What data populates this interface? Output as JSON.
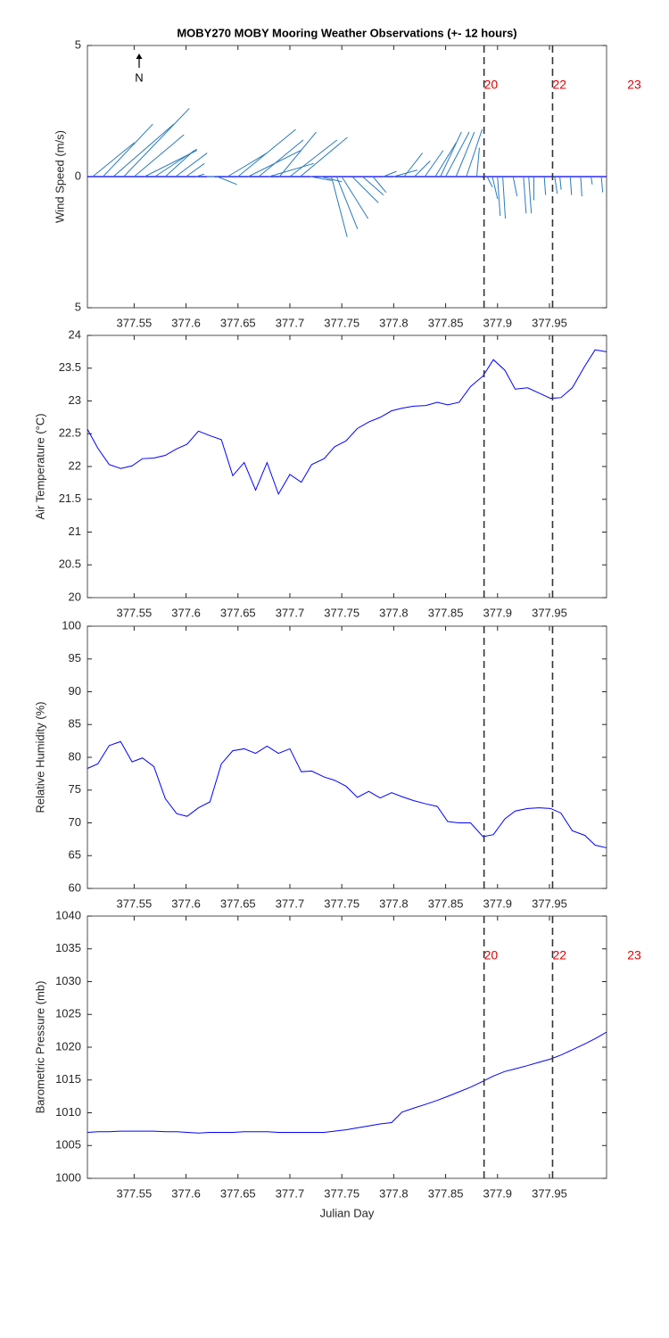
{
  "chart_data": [
    {
      "type": "stick",
      "title": "MOBY270 MOBY Mooring Weather Observations (+- 12 hours)",
      "ylabel": "Wind Speed (m/s)",
      "north_label": "N",
      "color": "#2b7bb9",
      "x": [
        377.51,
        377.52,
        377.53,
        377.54,
        377.55,
        377.56,
        377.57,
        377.58,
        377.59,
        377.6,
        377.61,
        377.62,
        377.63,
        377.64,
        377.65,
        377.66,
        377.67,
        377.68,
        377.69,
        377.7,
        377.71,
        377.72,
        377.73,
        377.74,
        377.745,
        377.75,
        377.76,
        377.77,
        377.78,
        377.79,
        377.8,
        377.81,
        377.82,
        377.83,
        377.84,
        377.845,
        377.85,
        377.86,
        377.87,
        377.88,
        377.885,
        377.89,
        377.895,
        377.9,
        377.905,
        377.915,
        377.925,
        377.93,
        377.935,
        377.945,
        377.955,
        377.96,
        377.97,
        377.98,
        377.99,
        378.0
      ],
      "u": [
        1.6,
        1.9,
        2.3,
        2.5,
        1.9,
        2.0,
        1.6,
        1.1,
        1.2,
        0.7,
        0.3,
        0.3,
        0.75,
        1.5,
        2.2,
        2.0,
        1.7,
        1.7,
        1.4,
        1.8,
        1.8,
        0.8,
        0.8,
        0.6,
        0.8,
        1.0,
        1.0,
        0.8,
        0.5,
        0.5,
        0.9,
        0.7,
        0.6,
        0.7,
        0.8,
        0.8,
        0.9,
        0.7,
        0.6,
        0.1,
        0.1,
        0.2,
        0.2,
        0.1,
        0.1,
        0.15,
        0.1,
        0.1,
        0.0,
        0.05,
        0.1,
        0.05,
        0.05,
        0.05,
        0.05,
        0.05
      ],
      "v": [
        1.3,
        2.0,
        2.0,
        2.6,
        1.6,
        1.0,
        1.05,
        1.0,
        0.9,
        0.5,
        0.1,
        0.0,
        -0.3,
        0.9,
        1.8,
        1.0,
        1.4,
        0.5,
        1.7,
        1.4,
        1.5,
        -0.15,
        -0.2,
        -2.3,
        -2.0,
        -1.6,
        -1.0,
        -0.7,
        -0.6,
        0.2,
        0.25,
        0.9,
        0.6,
        1.0,
        1.3,
        1.7,
        1.7,
        1.7,
        1.8,
        1.1,
        -0.1,
        -0.4,
        -0.85,
        -1.5,
        -1.6,
        -0.75,
        -1.4,
        -1.4,
        -0.9,
        -0.7,
        -0.65,
        -0.5,
        -0.7,
        -0.75,
        -0.3,
        -0.6
      ],
      "xlim": [
        377.505,
        378.005
      ],
      "xticks": [
        377.55,
        377.6,
        377.65,
        377.7,
        377.75,
        377.8,
        377.85,
        377.9,
        377.95
      ],
      "ylim": [
        -5,
        5
      ],
      "yticks": [
        {
          "value": -5,
          "label": "5"
        },
        0,
        5
      ],
      "vlines": [
        377.887,
        377.953
      ],
      "annotations": [
        {
          "text": "20",
          "x": 377.887
        },
        {
          "text": "22",
          "x": 377.953
        },
        {
          "text": "23",
          "x": 378.025
        }
      ]
    },
    {
      "type": "line",
      "ylabel": "Air Temperature (°C)",
      "color": "#0000ff",
      "x": [
        377.505,
        377.515,
        377.526,
        377.537,
        377.548,
        377.558,
        377.569,
        377.58,
        377.591,
        377.601,
        377.612,
        377.623,
        377.634,
        377.645,
        377.656,
        377.667,
        377.678,
        377.689,
        377.7,
        377.711,
        377.721,
        377.733,
        377.743,
        377.754,
        377.765,
        377.776,
        377.787,
        377.798,
        377.808,
        377.819,
        377.831,
        377.842,
        377.852,
        377.863,
        377.874,
        377.886,
        377.896,
        377.907,
        377.917,
        377.929,
        377.94,
        377.951,
        377.961,
        377.972,
        377.984,
        377.994,
        378.005
      ],
      "values": [
        22.57,
        22.28,
        22.03,
        21.97,
        22.01,
        22.12,
        22.13,
        22.17,
        22.27,
        22.34,
        22.54,
        22.47,
        22.41,
        21.86,
        22.06,
        21.64,
        22.06,
        21.58,
        21.88,
        21.76,
        22.03,
        22.12,
        22.3,
        22.39,
        22.58,
        22.68,
        22.75,
        22.85,
        22.89,
        22.92,
        22.93,
        22.98,
        22.94,
        22.98,
        23.22,
        23.38,
        23.63,
        23.47,
        23.18,
        23.2,
        23.12,
        23.04,
        23.05,
        23.2,
        23.53,
        23.78,
        23.75
      ],
      "xlim": [
        377.505,
        378.005
      ],
      "xticks": [
        377.55,
        377.6,
        377.65,
        377.7,
        377.75,
        377.8,
        377.85,
        377.9,
        377.95
      ],
      "ylim": [
        20,
        24
      ],
      "yticks": [
        20,
        20.5,
        21,
        21.5,
        22,
        22.5,
        23,
        23.5,
        24
      ],
      "vlines": [
        377.887,
        377.953
      ]
    },
    {
      "type": "line",
      "ylabel": "Relative Humidity (%)",
      "color": "#0000ff",
      "x": [
        377.505,
        377.515,
        377.526,
        377.537,
        377.548,
        377.558,
        377.569,
        377.58,
        377.591,
        377.601,
        377.612,
        377.623,
        377.634,
        377.645,
        377.656,
        377.667,
        377.678,
        377.689,
        377.7,
        377.711,
        377.721,
        377.733,
        377.743,
        377.754,
        377.765,
        377.776,
        377.787,
        377.798,
        377.808,
        377.819,
        377.831,
        377.842,
        377.852,
        377.863,
        377.874,
        377.886,
        377.896,
        377.907,
        377.917,
        377.929,
        377.94,
        377.951,
        377.961,
        377.972,
        377.984,
        377.994,
        378.005
      ],
      "values": [
        78.3,
        79.0,
        81.8,
        82.4,
        79.3,
        79.9,
        78.6,
        73.7,
        71.4,
        71.0,
        72.3,
        73.2,
        79.0,
        81.0,
        81.3,
        80.6,
        81.7,
        80.6,
        81.3,
        77.8,
        77.9,
        77.0,
        76.5,
        75.6,
        73.9,
        74.8,
        73.8,
        74.6,
        74.0,
        73.4,
        72.9,
        72.5,
        70.2,
        70.0,
        70.0,
        67.9,
        68.2,
        70.6,
        71.8,
        72.2,
        72.3,
        72.2,
        71.5,
        68.8,
        68.1,
        66.6,
        66.2
      ],
      "xlim": [
        377.505,
        378.005
      ],
      "xticks": [
        377.55,
        377.6,
        377.65,
        377.7,
        377.75,
        377.8,
        377.85,
        377.9,
        377.95
      ],
      "ylim": [
        60,
        100
      ],
      "yticks": [
        60,
        65,
        70,
        75,
        80,
        85,
        90,
        95,
        100
      ],
      "vlines": [
        377.887,
        377.953
      ]
    },
    {
      "type": "line",
      "ylabel": "Barometric Pressure (mb)",
      "xlabel": "Julian Day",
      "color": "#0000ff",
      "x": [
        377.505,
        377.515,
        377.526,
        377.537,
        377.548,
        377.558,
        377.569,
        377.58,
        377.591,
        377.601,
        377.612,
        377.623,
        377.634,
        377.645,
        377.656,
        377.667,
        377.678,
        377.689,
        377.7,
        377.711,
        377.721,
        377.733,
        377.743,
        377.754,
        377.765,
        377.776,
        377.787,
        377.798,
        377.808,
        377.819,
        377.831,
        377.842,
        377.852,
        377.863,
        377.874,
        377.886,
        377.896,
        377.907,
        377.917,
        377.929,
        377.94,
        377.951,
        377.961,
        377.972,
        377.984,
        377.994,
        378.005
      ],
      "values": [
        1007.0,
        1007.1,
        1007.1,
        1007.2,
        1007.2,
        1007.2,
        1007.2,
        1007.1,
        1007.1,
        1007.0,
        1006.9,
        1007.0,
        1007.0,
        1007.0,
        1007.1,
        1007.1,
        1007.1,
        1007.0,
        1007.0,
        1007.0,
        1007.0,
        1007.0,
        1007.2,
        1007.4,
        1007.7,
        1008.0,
        1008.3,
        1008.5,
        1010.1,
        1010.7,
        1011.3,
        1011.9,
        1012.5,
        1013.2,
        1013.9,
        1014.8,
        1015.6,
        1016.3,
        1016.7,
        1017.2,
        1017.7,
        1018.2,
        1018.8,
        1019.6,
        1020.5,
        1021.3,
        1022.3
      ],
      "xlim": [
        377.505,
        378.005
      ],
      "xticks": [
        377.55,
        377.6,
        377.65,
        377.7,
        377.75,
        377.8,
        377.85,
        377.9,
        377.95
      ],
      "ylim": [
        1000,
        1040
      ],
      "yticks": [
        1000,
        1005,
        1010,
        1015,
        1020,
        1025,
        1030,
        1035,
        1040
      ],
      "vlines": [
        377.887,
        377.953
      ],
      "annotations": [
        {
          "text": "20",
          "x": 377.887
        },
        {
          "text": "22",
          "x": 377.953
        },
        {
          "text": "23",
          "x": 378.025
        }
      ]
    }
  ]
}
